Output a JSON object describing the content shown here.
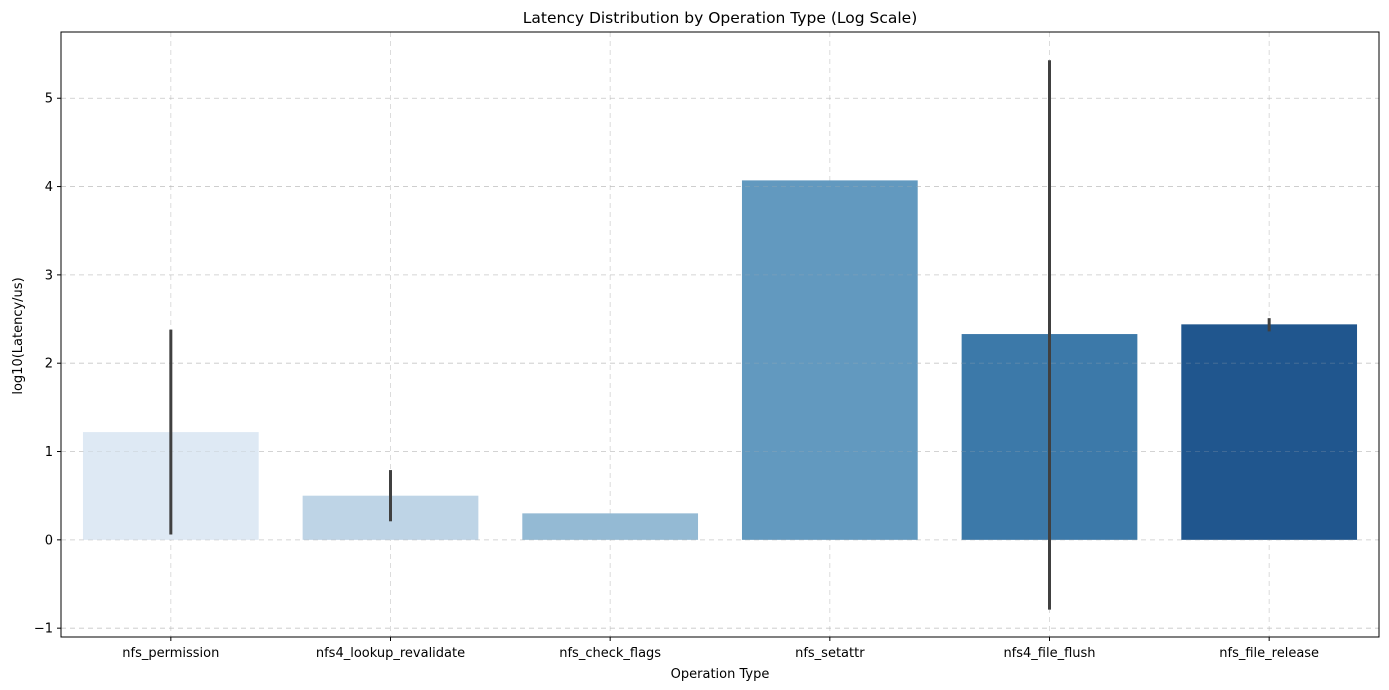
{
  "chart_data": {
    "type": "bar",
    "title": "Latency Distribution by Operation Type (Log Scale)",
    "xlabel": "Operation Type",
    "ylabel": "log10(Latency/us)",
    "categories": [
      "nfs_permission",
      "nfs4_lookup_revalidate",
      "nfs_check_flags",
      "nfs_setattr",
      "nfs4_file_flush",
      "nfs_file_release"
    ],
    "values": [
      1.22,
      0.5,
      0.3,
      4.07,
      2.33,
      2.44
    ],
    "error_bars": [
      {
        "low": 0.06,
        "high": 2.38
      },
      {
        "low": 0.21,
        "high": 0.79
      },
      null,
      null,
      {
        "low": -0.79,
        "high": 5.43
      },
      {
        "low": 2.36,
        "high": 2.51
      }
    ],
    "bar_colors": [
      "#dee9f4",
      "#bed4e6",
      "#94bad4",
      "#6299bf",
      "#3c79a9",
      "#20568e"
    ],
    "error_color": "#404040",
    "ylim": [
      -1.1,
      5.75
    ],
    "yticks": [
      -1,
      0,
      1,
      2,
      3,
      4,
      5
    ],
    "ytick_labels": [
      "−1",
      "0",
      "1",
      "2",
      "3",
      "4",
      "5"
    ],
    "grid": true
  }
}
